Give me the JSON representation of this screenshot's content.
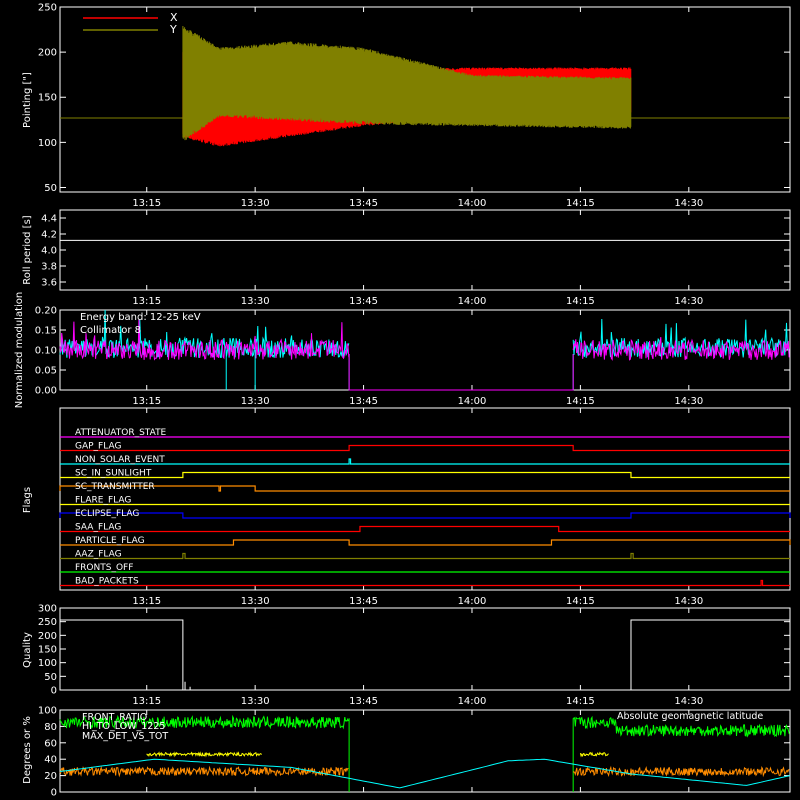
{
  "x_axis": {
    "range": [
      "13:03",
      "14:44"
    ],
    "ticks": [
      "13:15",
      "13:30",
      "13:45",
      "14:00",
      "14:15",
      "14:30"
    ],
    "tick_minutes": [
      795,
      810,
      825,
      840,
      855,
      870
    ]
  },
  "chart_data": [
    {
      "panel": "pointing",
      "type": "line",
      "ylabel": "Pointing [\"]",
      "ylim": [
        45,
        250
      ],
      "y_ticks": [
        50,
        100,
        150,
        200,
        250
      ],
      "legend_position": "top-left",
      "series": [
        {
          "name": "X",
          "color": "#ff0000",
          "t_start": "13:20",
          "t_end": "14:22",
          "envelope_high": [
            [
              800,
              200
            ],
            [
              805,
              170
            ],
            [
              825,
              180
            ],
            [
              840,
              183
            ],
            [
              862,
              183
            ]
          ],
          "envelope_low": [
            [
              800,
              105
            ],
            [
              805,
              95
            ],
            [
              825,
              118
            ],
            [
              840,
              130
            ],
            [
              862,
              132
            ]
          ]
        },
        {
          "name": "Y",
          "color": "#808000",
          "t_start": "13:20",
          "t_end": "14:22",
          "envelope_high": [
            [
              800,
              230
            ],
            [
              805,
              205
            ],
            [
              815,
              212
            ],
            [
              825,
              205
            ],
            [
              840,
              175
            ],
            [
              862,
              172
            ]
          ],
          "envelope_low": [
            [
              800,
              100
            ],
            [
              805,
              128
            ],
            [
              825,
              120
            ],
            [
              840,
              118
            ],
            [
              862,
              115
            ]
          ]
        },
        {
          "name": "",
          "color": "#808000",
          "type": "baseline",
          "value": 127
        }
      ]
    },
    {
      "panel": "roll_period",
      "type": "line",
      "ylabel": "Roll period [s]",
      "ylim": [
        3.5,
        4.5
      ],
      "y_ticks": [
        "3.6",
        "3.8",
        "4.0",
        "4.2",
        "4.4"
      ],
      "series": [
        {
          "name": "",
          "color": "#ffffff",
          "value": 4.12
        }
      ]
    },
    {
      "panel": "modulation",
      "type": "line",
      "ylabel": "Normalized modulation",
      "ylim": [
        0,
        0.2
      ],
      "y_ticks": [
        "0.00",
        "0.05",
        "0.10",
        "0.15",
        "0.20"
      ],
      "annotations": [
        "Energy band: 12-25 keV",
        "Collimator 8"
      ],
      "series": [
        {
          "name": "Collimator 8",
          "color": "#00ffff",
          "segments": [
            [
              "13:03",
              "13:43"
            ],
            [
              "14:14",
              "14:44"
            ]
          ],
          "mean": 0.105
        },
        {
          "name": "",
          "color": "#ff00ff",
          "segments": [
            [
              "13:03",
              "13:43"
            ],
            [
              "14:14",
              "14:44"
            ]
          ],
          "mean": 0.1
        }
      ]
    },
    {
      "panel": "flags",
      "type": "line",
      "ylabel": "Flags",
      "series": [
        {
          "name": "ATTENUATOR_STATE",
          "color": "#ff00ff",
          "steps": []
        },
        {
          "name": "GAP_FLAG",
          "color": "#ff0000",
          "steps": [
            [
              "13:43",
              "14:14"
            ]
          ]
        },
        {
          "name": "NON_SOLAR_EVENT",
          "color": "#00ffff",
          "steps": [
            [
              "13:43",
              "13:43.2"
            ]
          ]
        },
        {
          "name": "SC_IN_SUNLIGHT",
          "color": "#ffff00",
          "steps": [
            [
              "13:20",
              "14:22"
            ]
          ]
        },
        {
          "name": "SC_TRANSMITTER",
          "color": "#ff8c00",
          "steps": [
            [
              "13:03",
              "13:25"
            ],
            [
              "13:25.2",
              "13:30"
            ]
          ]
        },
        {
          "name": "FLARE_FLAG",
          "color": "#ffff00",
          "steps": []
        },
        {
          "name": "ECLIPSE_FLAG",
          "color": "#0000ff",
          "steps": [
            [
              "13:03",
              "13:20"
            ],
            [
              "14:22",
              "14:44"
            ]
          ]
        },
        {
          "name": "SAA_FLAG",
          "color": "#ff0000",
          "steps": [
            [
              "13:44.5",
              "14:12"
            ]
          ]
        },
        {
          "name": "PARTICLE_FLAG",
          "color": "#ff8c00",
          "steps": [
            [
              "13:27",
              "13:43"
            ],
            [
              "14:11",
              "14:44"
            ]
          ]
        },
        {
          "name": "AAZ_FLAG",
          "color": "#808000",
          "steps": [
            [
              "13:20",
              "13:20.3"
            ],
            [
              "14:22",
              "14:22.3"
            ]
          ]
        },
        {
          "name": "FRONTS_OFF",
          "color": "#00ff00",
          "steps": []
        },
        {
          "name": "BAD_PACKETS",
          "color": "#ff0000",
          "steps": [
            [
              "14:40",
              "14:40.2"
            ]
          ]
        }
      ]
    },
    {
      "panel": "quality",
      "type": "line",
      "ylabel": "Quality",
      "ylim": [
        0,
        300
      ],
      "y_ticks": [
        0,
        50,
        100,
        150,
        200,
        250,
        300
      ],
      "series": [
        {
          "name": "",
          "color": "#ffffff",
          "steps": [
            [
              "13:03",
              256
            ],
            [
              "13:20",
              0
            ],
            [
              "14:22",
              256
            ],
            [
              "14:44",
              256
            ]
          ]
        }
      ]
    },
    {
      "panel": "ratios",
      "type": "line",
      "ylabel": "Degrees or %",
      "ylim": [
        0,
        100
      ],
      "y_ticks": [
        0,
        20,
        40,
        60,
        80,
        100
      ],
      "series": [
        {
          "name": "FRONT_RATIO",
          "color": "#00ff00",
          "segments": [
            [
              "13:03",
              "13:43"
            ],
            [
              "14:14",
              "14:44"
            ]
          ],
          "mean": 85
        },
        {
          "name": "HI_TO_LOW_1225",
          "color": "#ffff00",
          "segments": [
            [
              "13:15",
              "13:31"
            ],
            [
              "14:15",
              "14:19"
            ]
          ],
          "mean": 46
        },
        {
          "name": "MAX_DET_VS_TOT",
          "color": "#ff8c00",
          "segments": [
            [
              "13:03",
              "13:43"
            ],
            [
              "14:14",
              "14:44"
            ]
          ],
          "mean": 25
        },
        {
          "name": "Absolute geomagnetic latitude",
          "color": "#00ffff",
          "points": [
            [
              783,
              25
            ],
            [
              796,
              40
            ],
            [
              815,
              30
            ],
            [
              830,
              5
            ],
            [
              845,
              38
            ],
            [
              850,
              40
            ],
            [
              862,
              22
            ],
            [
              878,
              8
            ],
            [
              884,
              20
            ]
          ]
        }
      ]
    }
  ]
}
